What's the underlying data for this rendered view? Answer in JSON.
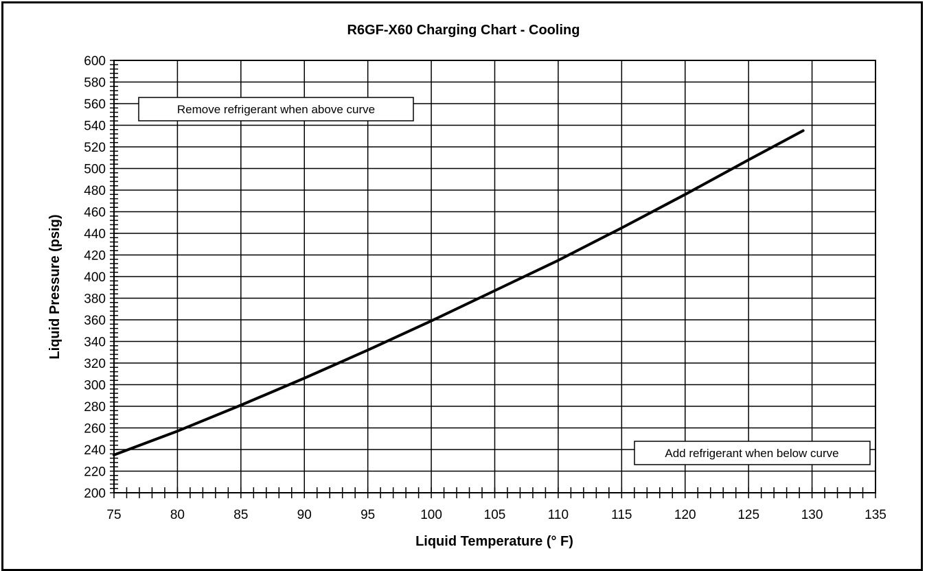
{
  "chart_data": {
    "type": "line",
    "title": "R6GF-X60 Charging Chart - Cooling",
    "xlabel": "Liquid Temperature (° F)",
    "ylabel": "Liquid Pressure (psig)",
    "xlim": [
      75,
      135
    ],
    "ylim": [
      200,
      600
    ],
    "x_ticks": [
      75,
      80,
      85,
      90,
      95,
      100,
      105,
      110,
      115,
      120,
      125,
      130,
      135
    ],
    "y_ticks": [
      200,
      220,
      240,
      260,
      280,
      300,
      320,
      340,
      360,
      380,
      400,
      420,
      440,
      460,
      480,
      500,
      520,
      540,
      560,
      580,
      600
    ],
    "x_minor_step": 1,
    "y_minor_step": 4,
    "grid": true,
    "series": [
      {
        "x": [
          75,
          80,
          85,
          90,
          95,
          100,
          105,
          110,
          115,
          120,
          125,
          129.3
        ],
        "y": [
          235,
          257,
          281,
          306,
          332,
          359,
          387,
          415,
          445,
          476,
          508,
          535
        ]
      }
    ],
    "annotations": [
      {
        "text": "Remove refrigerant when above curve"
      },
      {
        "text": "Add refrigerant when below curve"
      }
    ],
    "line_color": "#000000",
    "grid_color": "#000000"
  }
}
